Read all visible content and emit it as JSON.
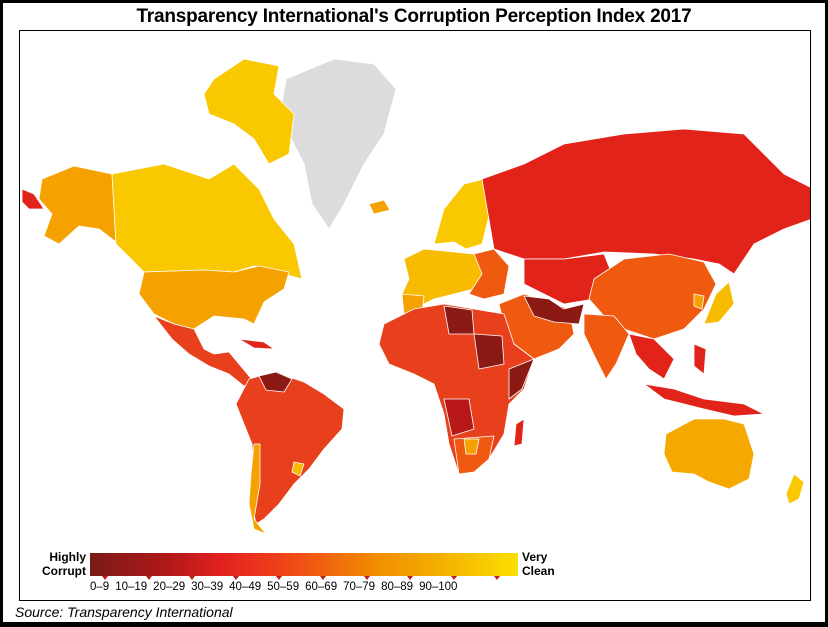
{
  "title": "Transparency International's Corruption Perception Index 2017",
  "legend": {
    "low_label_line1": "Highly",
    "low_label_line2": "Corrupt",
    "high_label_line1": "Very",
    "high_label_line2": "Clean",
    "ranges": [
      "0–9",
      "10–19",
      "20–29",
      "30–39",
      "40–49",
      "50–59",
      "60–69",
      "70–79",
      "80–89",
      "90–100"
    ]
  },
  "source": "Source: Transparency International",
  "colors": {
    "no_data": "#dcdcdc",
    "very_corrupt": "#8c1a14",
    "corrupt_dark": "#b81818",
    "corrupt": "#e2231a",
    "mid_red": "#e8401c",
    "orange_red": "#f05a10",
    "orange": "#f5a200",
    "yellow_orange": "#f7bb00",
    "clean": "#f9c800"
  }
}
